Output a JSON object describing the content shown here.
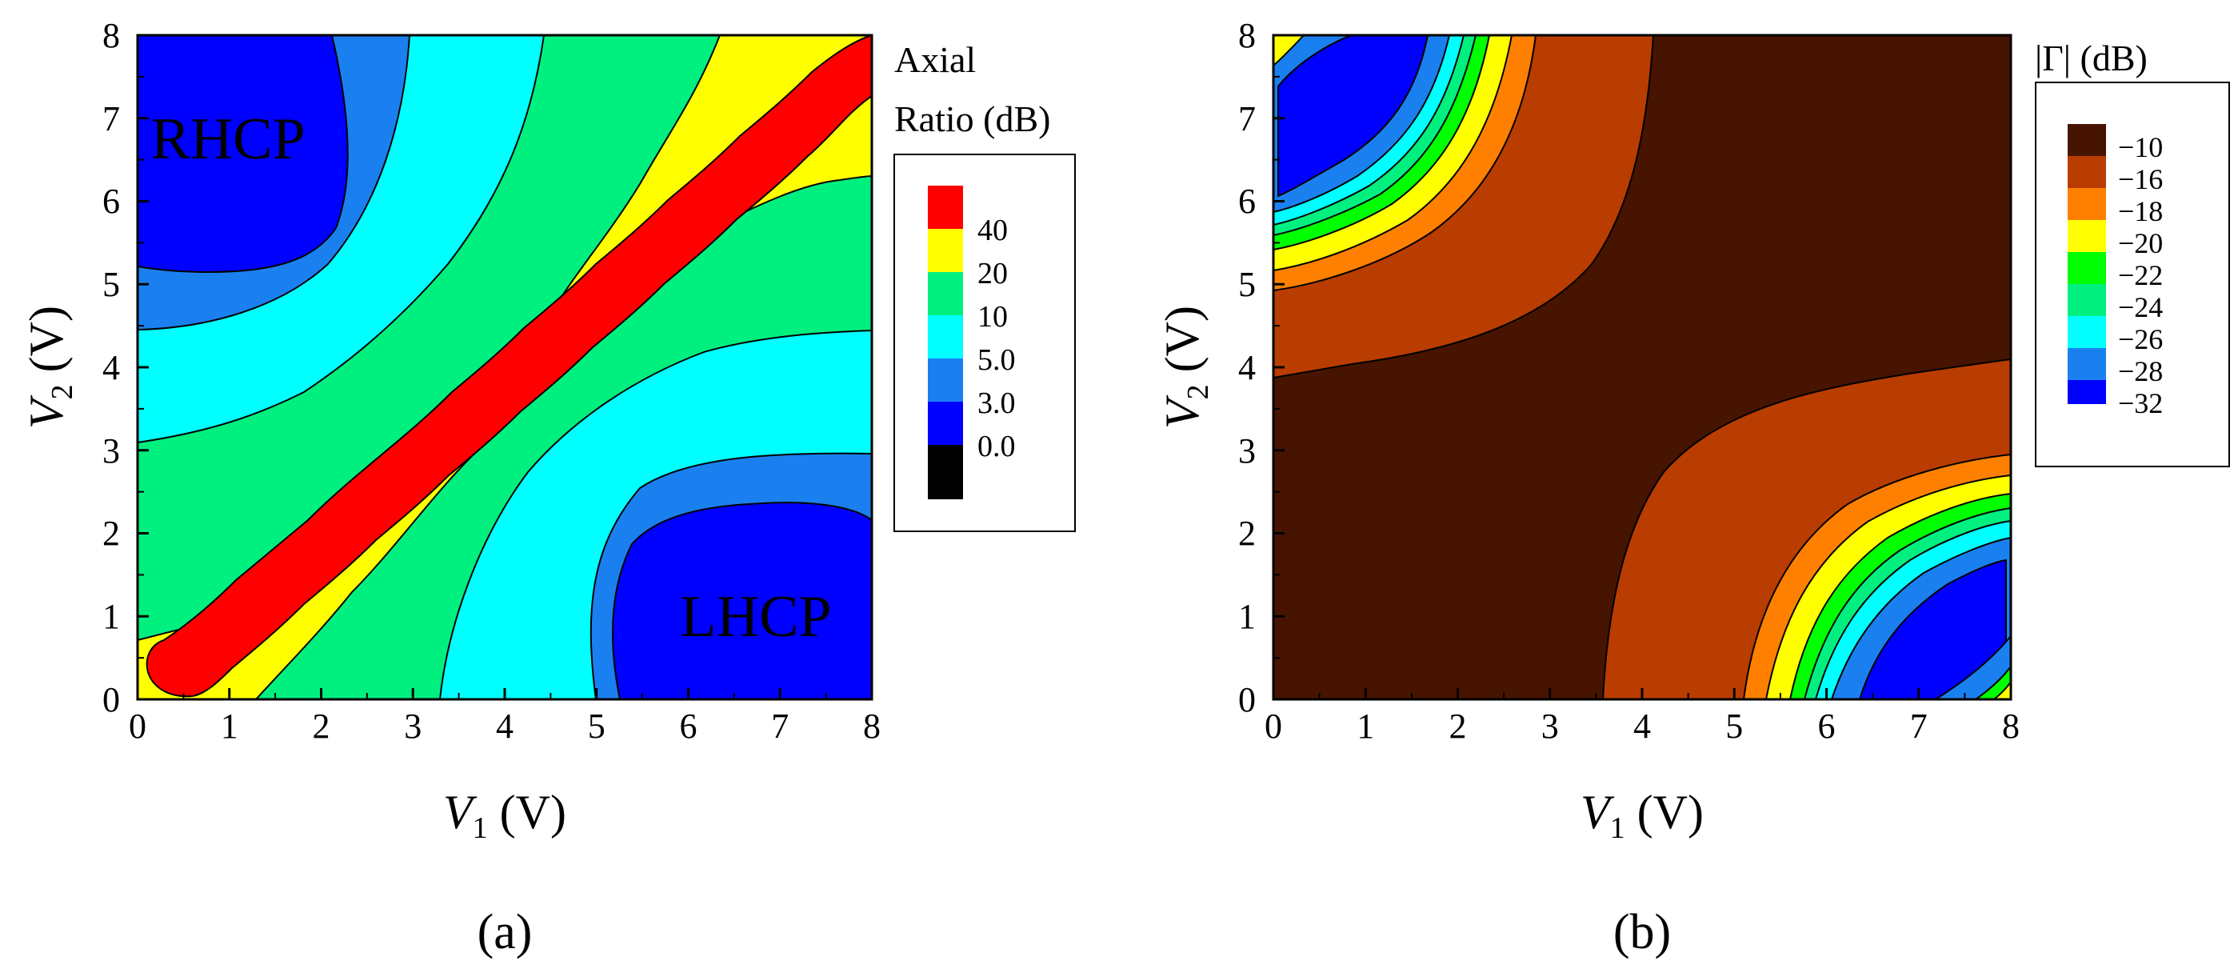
{
  "chart_data": [
    {
      "panel_label": "(a)",
      "type": "heatmap",
      "subtype": "contour",
      "title": "Axial Ratio (dB)",
      "colorbar_title_lines": [
        "Axial",
        "Ratio (dB)"
      ],
      "xlabel": {
        "var": "V",
        "sub": "1",
        "unit": " (V)"
      },
      "ylabel": {
        "var": "V",
        "sub": "2",
        "unit": " (V)"
      },
      "xlim": [
        0,
        8
      ],
      "ylim": [
        0,
        8
      ],
      "xticks": [
        "0",
        "1",
        "2",
        "3",
        "4",
        "5",
        "6",
        "7",
        "8"
      ],
      "yticks": [
        "0",
        "1",
        "2",
        "3",
        "4",
        "5",
        "6",
        "7",
        "8"
      ],
      "levels": [
        {
          "label": "40",
          "color": "#ff0000"
        },
        {
          "label": "20",
          "color": "#ffff00"
        },
        {
          "label": "10",
          "color": "#00f080"
        },
        {
          "label": "5.0",
          "color": "#00ffff"
        },
        {
          "label": "3.0",
          "color": "#1a80f0"
        },
        {
          "label": "0.0",
          "color": "#0000ff"
        },
        {
          "label": "",
          "color": "#000000"
        }
      ],
      "annotations": [
        {
          "text": "RHCP",
          "x": 1.2,
          "y": 6.75,
          "color": "#32e632"
        },
        {
          "text": "LHCP",
          "x": 6.75,
          "y": 0.95,
          "color": "#32e632"
        }
      ]
    },
    {
      "panel_label": "(b)",
      "type": "heatmap",
      "subtype": "contour",
      "title": "|Γ| (dB)",
      "xlabel": {
        "var": "V",
        "sub": "1",
        "unit": " (V)"
      },
      "ylabel": {
        "var": "V",
        "sub": "2",
        "unit": " (V)"
      },
      "xlim": [
        0,
        8
      ],
      "ylim": [
        0,
        8
      ],
      "xticks": [
        "0",
        "1",
        "2",
        "3",
        "4",
        "5",
        "6",
        "7",
        "8"
      ],
      "yticks": [
        "0",
        "1",
        "2",
        "3",
        "4",
        "5",
        "6",
        "7",
        "8"
      ],
      "levels": [
        {
          "label": "−10",
          "color": "#461400"
        },
        {
          "label": "−16",
          "color": "#b93c00"
        },
        {
          "label": "−18",
          "color": "#ff8000"
        },
        {
          "label": "−20",
          "color": "#ffff00"
        },
        {
          "label": "−22",
          "color": "#00ff00"
        },
        {
          "label": "−24",
          "color": "#00f080"
        },
        {
          "label": "−26",
          "color": "#00ffff"
        },
        {
          "label": "−28",
          "color": "#1a80f0"
        },
        {
          "label": "−32",
          "color": "#0000ff"
        }
      ]
    }
  ]
}
